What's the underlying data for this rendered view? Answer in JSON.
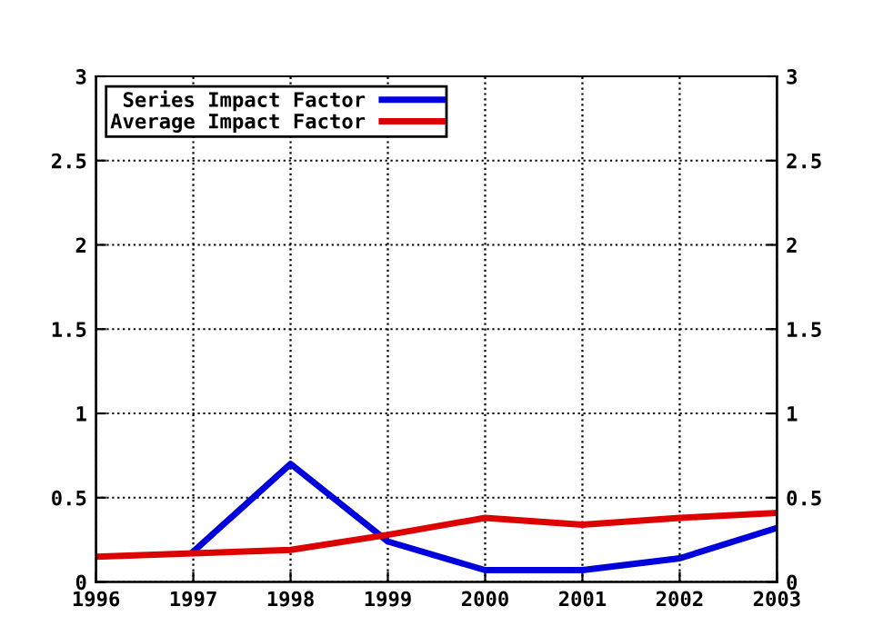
{
  "chart_data": {
    "type": "line",
    "x": [
      1996,
      1997,
      1998,
      1999,
      2000,
      2001,
      2002,
      2003
    ],
    "series": [
      {
        "name": "Series Impact Factor",
        "color": "#0000dd",
        "values": [
          null,
          0.18,
          0.7,
          0.24,
          0.07,
          0.07,
          0.14,
          0.32
        ]
      },
      {
        "name": "Average Impact Factor",
        "color": "#dd0000",
        "values": [
          0.15,
          0.17,
          0.19,
          0.28,
          0.38,
          0.34,
          0.38,
          0.41
        ]
      }
    ],
    "xlim": [
      1996,
      2003
    ],
    "xticks": [
      1996,
      1997,
      1998,
      1999,
      2000,
      2001,
      2002,
      2003
    ],
    "ylim": [
      0,
      3
    ],
    "yticks": [
      0,
      0.5,
      1,
      1.5,
      2,
      2.5,
      3
    ],
    "y2lim": [
      0,
      3
    ],
    "y2ticks": [
      0,
      0.5,
      1,
      1.5,
      2,
      2.5,
      3
    ],
    "grid": true,
    "legend": "top left",
    "marker": "none",
    "line_style": "solid"
  }
}
